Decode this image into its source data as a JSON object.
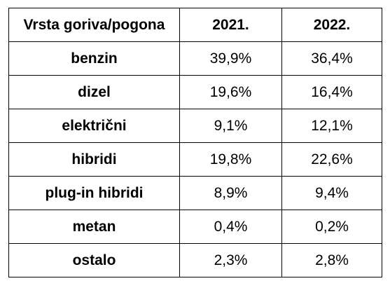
{
  "table": {
    "headers": [
      "Vrsta goriva/pogona",
      "2021.",
      "2022."
    ],
    "rows": [
      {
        "label": "benzin",
        "y2021": "39,9%",
        "y2022": "36,4%"
      },
      {
        "label": "dizel",
        "y2021": "19,6%",
        "y2022": "16,4%"
      },
      {
        "label": "električni",
        "y2021": "9,1%",
        "y2022": "12,1%"
      },
      {
        "label": "hibridi",
        "y2021": "19,8%",
        "y2022": "22,6%"
      },
      {
        "label": "plug-in hibridi",
        "y2021": "8,9%",
        "y2022": "9,4%"
      },
      {
        "label": "metan",
        "y2021": "0,4%",
        "y2022": "0,2%"
      },
      {
        "label": "ostalo",
        "y2021": "2,3%",
        "y2022": "2,8%"
      }
    ]
  },
  "chart_data": {
    "type": "table",
    "columns": [
      "Vrsta goriva/pogona",
      "2021.",
      "2022."
    ],
    "categories": [
      "benzin",
      "dizel",
      "električni",
      "hibridi",
      "plug-in hibridi",
      "metan",
      "ostalo"
    ],
    "series": [
      {
        "name": "2021.",
        "values": [
          39.9,
          19.6,
          9.1,
          19.8,
          8.9,
          0.4,
          2.3
        ]
      },
      {
        "name": "2022.",
        "values": [
          36.4,
          16.4,
          12.1,
          22.6,
          9.4,
          0.2,
          2.8
        ]
      }
    ]
  }
}
